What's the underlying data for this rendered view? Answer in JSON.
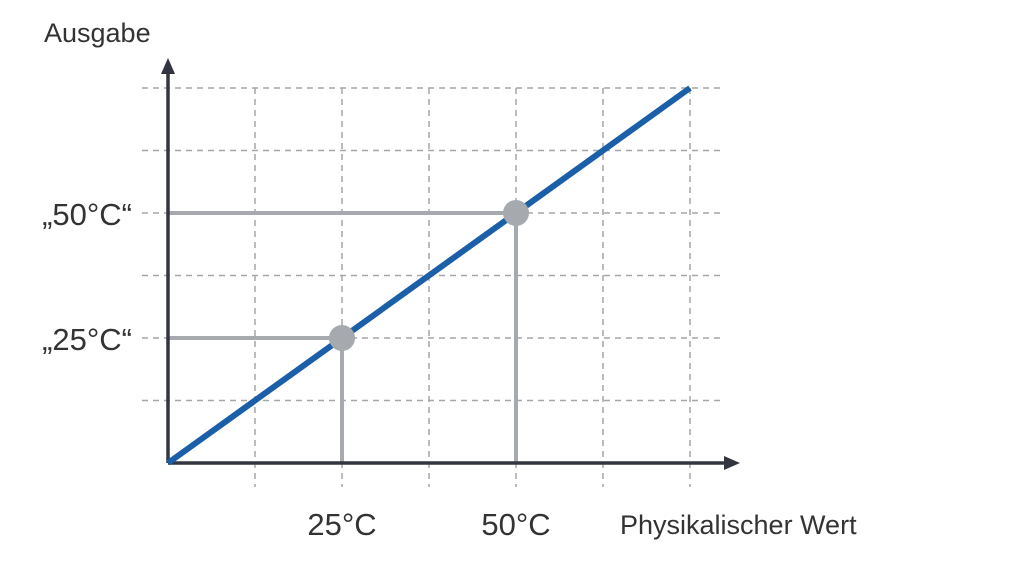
{
  "chart_data": {
    "type": "line",
    "title": "",
    "xlabel": "Physikalischer Wert",
    "ylabel": "Ausgabe",
    "x_ticks": [
      {
        "value": 25,
        "label": "25°C"
      },
      {
        "value": 50,
        "label": "50°C"
      }
    ],
    "y_ticks": [
      {
        "value": 25,
        "label": "„25°C“"
      },
      {
        "value": 50,
        "label": "„50°C“"
      }
    ],
    "xlim": [
      0,
      75
    ],
    "ylim": [
      0,
      75
    ],
    "grid": true,
    "series": [
      {
        "x": [
          0,
          75
        ],
        "y": [
          0,
          75
        ],
        "color": "#1a5fa8"
      }
    ],
    "highlight_points": [
      {
        "x": 25,
        "y": 25
      },
      {
        "x": 50,
        "y": 50
      }
    ],
    "colors": {
      "line": "#1a5fa8",
      "axis": "#333640",
      "grid": "#a6a6a6",
      "guide": "#a6a9ad",
      "marker": "#a6a9ad"
    }
  }
}
